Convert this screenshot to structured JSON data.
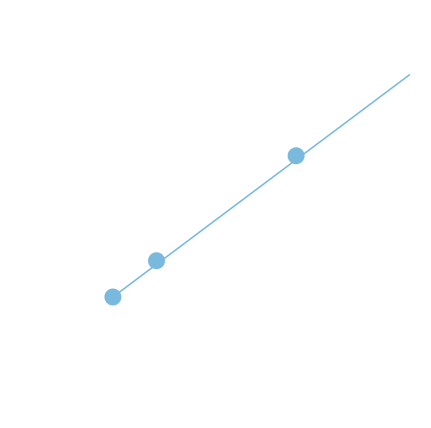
{
  "chart_data": {
    "type": "line",
    "title": "",
    "xlabel": "",
    "ylabel": "",
    "grid": false,
    "legend": "none",
    "xlim": [
      0,
      10
    ],
    "ylim": [
      0,
      10
    ],
    "series": [
      {
        "color": "#7ab9de",
        "line": {
          "x": [
            2.62,
            9.5
          ],
          "y": [
            3.06,
            8.25
          ]
        },
        "markers": {
          "x": [
            2.62,
            3.63,
            6.87
          ],
          "y": [
            3.06,
            3.91,
            6.36
          ]
        }
      }
    ]
  }
}
